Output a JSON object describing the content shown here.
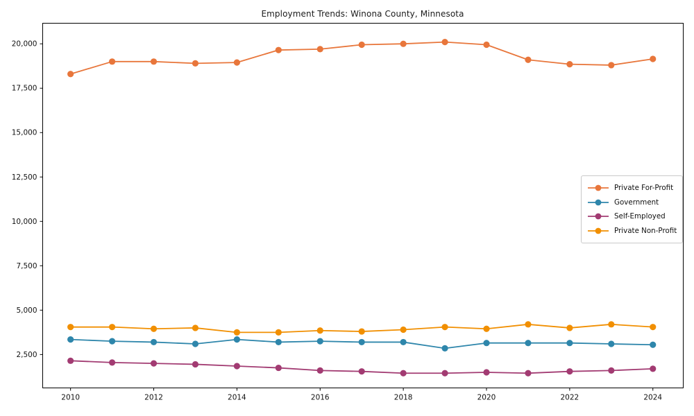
{
  "chart_data": {
    "type": "line",
    "title": "Employment Trends: Winona County, Minnesota",
    "xlabel": "",
    "ylabel": "",
    "x": [
      2010,
      2011,
      2012,
      2013,
      2014,
      2015,
      2016,
      2017,
      2018,
      2019,
      2020,
      2021,
      2022,
      2023,
      2024
    ],
    "series": [
      {
        "name": "Private For-Profit",
        "color": "#E8763B",
        "values": [
          18300,
          19000,
          19000,
          18900,
          18950,
          19650,
          19700,
          19950,
          20000,
          20100,
          19950,
          19100,
          18850,
          18800,
          19150
        ]
      },
      {
        "name": "Government",
        "color": "#2E86AB",
        "values": [
          3350,
          3250,
          3200,
          3100,
          3350,
          3200,
          3250,
          3200,
          3200,
          2850,
          3150,
          3150,
          3150,
          3100,
          3050
        ]
      },
      {
        "name": "Self-Employed",
        "color": "#A23B72",
        "values": [
          2150,
          2050,
          2000,
          1950,
          1850,
          1750,
          1600,
          1550,
          1450,
          1450,
          1500,
          1450,
          1550,
          1600,
          1700
        ]
      },
      {
        "name": "Private Non-Profit",
        "color": "#F18F01",
        "values": [
          4050,
          4050,
          3950,
          4000,
          3750,
          3750,
          3850,
          3800,
          3900,
          4050,
          3950,
          4200,
          4000,
          4200,
          4050
        ]
      }
    ],
    "xticks": [
      2010,
      2012,
      2014,
      2016,
      2018,
      2020,
      2022,
      2024
    ],
    "yticks": [
      2500,
      5000,
      7500,
      10000,
      12500,
      15000,
      17500,
      20000
    ],
    "ytick_labels": [
      "2,500",
      "5,000",
      "7,500",
      "10,000",
      "12,500",
      "15,000",
      "17,500",
      "20,000"
    ],
    "xlim": [
      2009.33,
      2024.73
    ],
    "ylim": [
      620,
      21160
    ],
    "grid": false,
    "legend_position": "center-right",
    "axis_color": "#000000",
    "text_color": "#111111",
    "background": "#ffffff"
  }
}
